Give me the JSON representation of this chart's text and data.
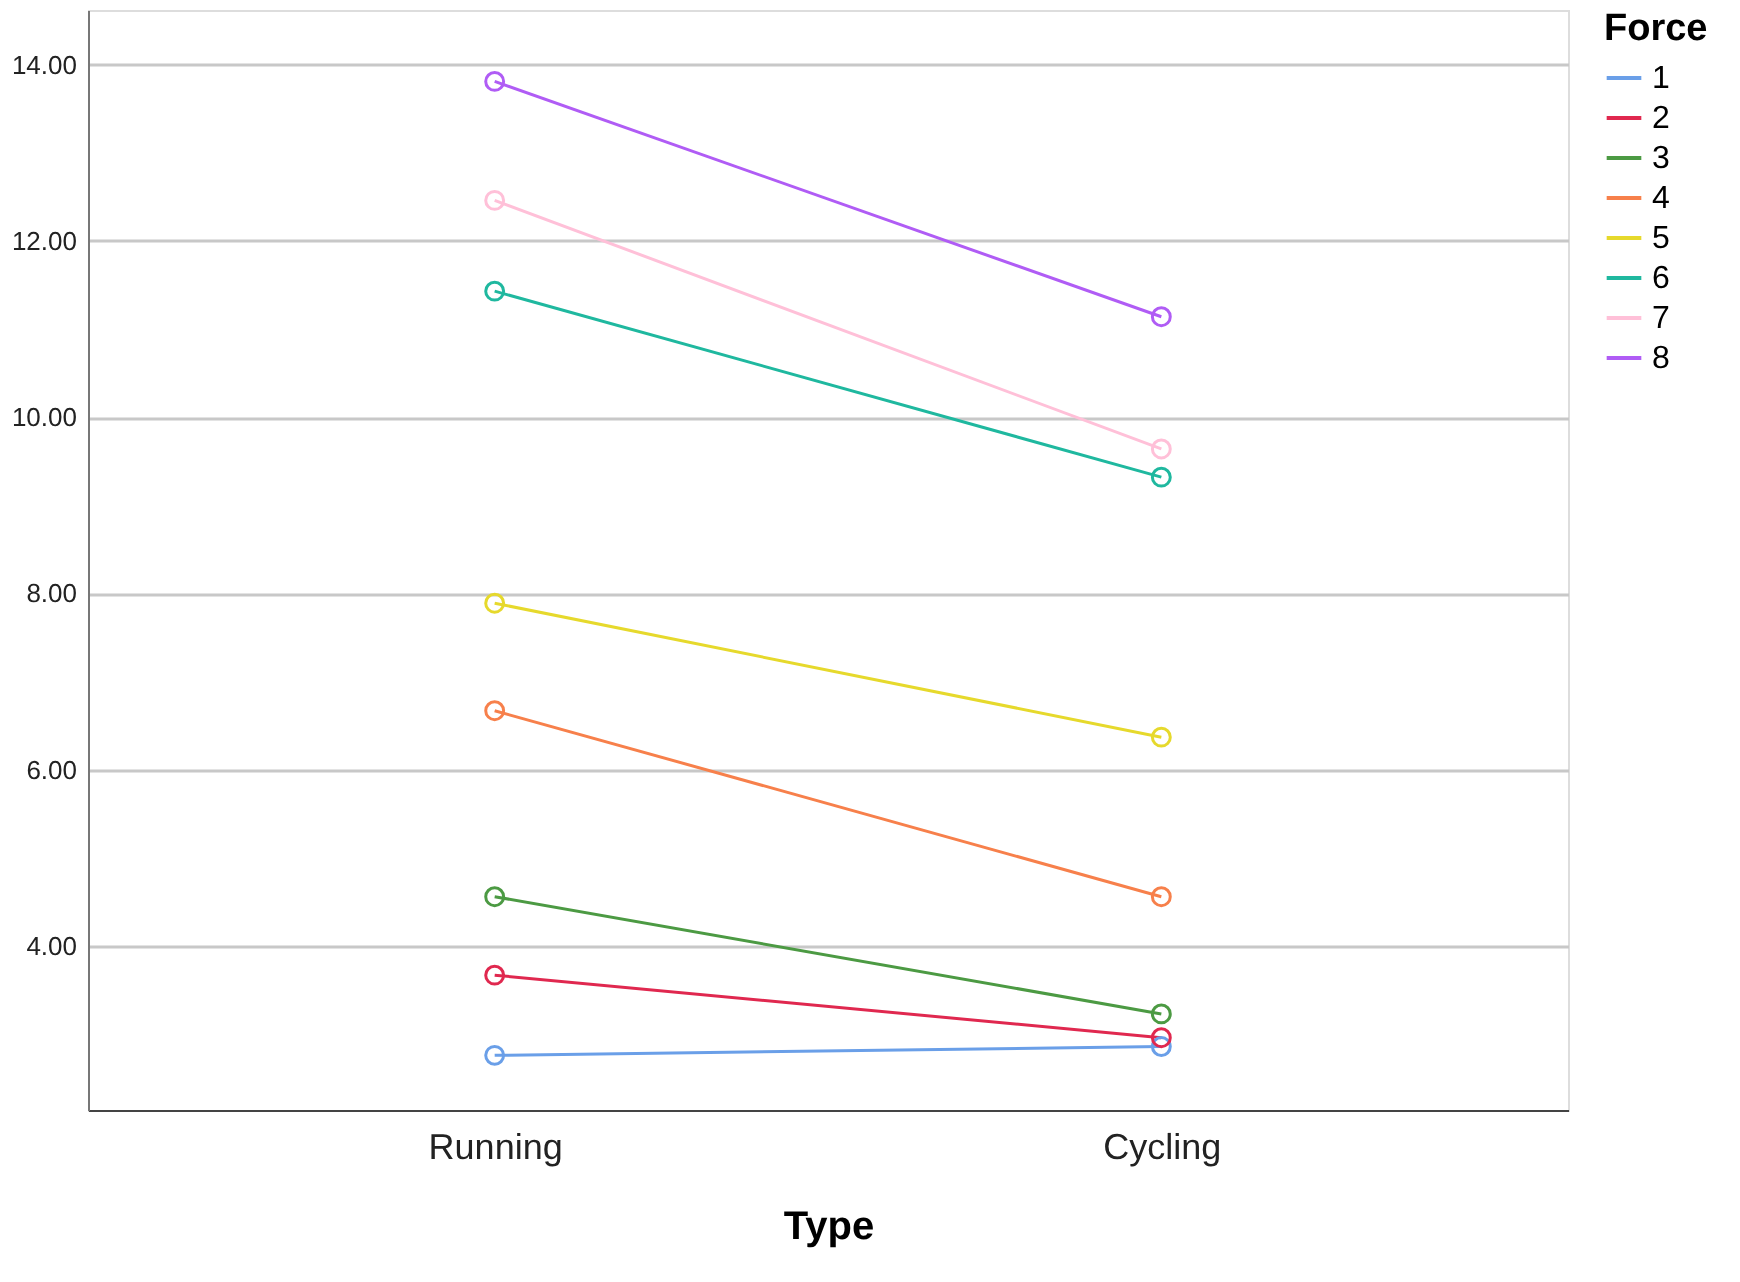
{
  "chart_data": {
    "type": "line",
    "xlabel": "Type",
    "legend_title": "Force",
    "categories": [
      "Running",
      "Cycling"
    ],
    "series": [
      {
        "name": "1",
        "color": "#6a9fe8",
        "values": [
          2.76,
          2.86
        ]
      },
      {
        "name": "2",
        "color": "#e0284f",
        "values": [
          3.67,
          2.96
        ]
      },
      {
        "name": "3",
        "color": "#4c9a43",
        "values": [
          4.56,
          3.23
        ]
      },
      {
        "name": "4",
        "color": "#f7804b",
        "values": [
          6.67,
          4.56
        ]
      },
      {
        "name": "5",
        "color": "#e6d92c",
        "values": [
          7.89,
          6.37
        ]
      },
      {
        "name": "6",
        "color": "#1fb89f",
        "values": [
          11.43,
          9.32
        ]
      },
      {
        "name": "7",
        "color": "#ffc0d8",
        "values": [
          12.46,
          9.64
        ]
      },
      {
        "name": "8",
        "color": "#b05cf5",
        "values": [
          13.81,
          11.14
        ]
      }
    ],
    "ylim": [
      2.14,
      14.62
    ],
    "yticks": [
      {
        "value": 4,
        "label": "4.00"
      },
      {
        "value": 6,
        "label": "6.00"
      },
      {
        "value": 8,
        "label": "8.00"
      },
      {
        "value": 10,
        "label": "10.00"
      },
      {
        "value": 12,
        "label": "12.00"
      },
      {
        "value": 14,
        "label": "14.00"
      }
    ],
    "grid": "y",
    "legend": "top right",
    "marker": "circle",
    "line_style": "solid"
  }
}
